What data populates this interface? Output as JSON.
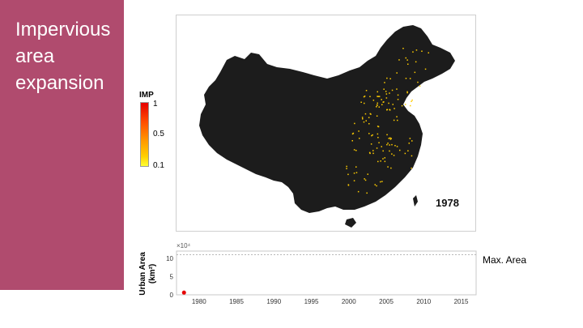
{
  "slide": {
    "title_lines": [
      "Impervious",
      "area",
      "expansion"
    ],
    "accent_color": "#b04b6e"
  },
  "map": {
    "year": "1978",
    "land_color": "#1c1c1c",
    "urban_color": "#ffcc00"
  },
  "legend": {
    "title": "IMP",
    "ticks": [
      "1",
      "0.5",
      "0.1"
    ]
  },
  "chart_data": {
    "type": "scatter",
    "ylabel_line1": "Urban Area",
    "ylabel_line2": "(km²)",
    "y_multiplier": "×10⁴",
    "xlim": [
      1977,
      2017
    ],
    "ylim": [
      0,
      12
    ],
    "x_ticks": [
      1980,
      1985,
      1990,
      1995,
      2000,
      2005,
      2010,
      2015
    ],
    "y_ticks": [
      0,
      5,
      10
    ],
    "max_area_value": 11,
    "max_area_label": "Max. Area",
    "points": [
      {
        "x": 1978,
        "y": 0.6
      }
    ],
    "point_color": "#e60000",
    "grid": false
  }
}
